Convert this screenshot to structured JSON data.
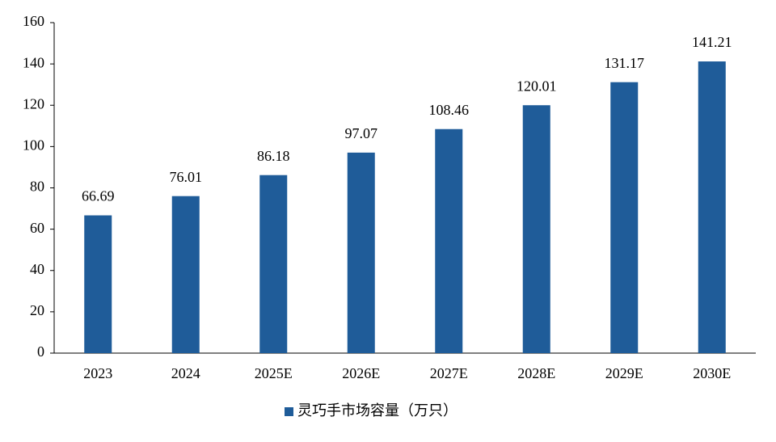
{
  "chart_data": {
    "type": "bar",
    "categories": [
      "2023",
      "2024",
      "2025E",
      "2026E",
      "2027E",
      "2028E",
      "2029E",
      "2030E"
    ],
    "series": [
      {
        "name": "灵巧手市场容量（万只）",
        "color": "#1f5c99",
        "values": [
          66.69,
          76.01,
          86.18,
          97.07,
          108.46,
          120.01,
          131.17,
          141.21
        ]
      }
    ],
    "ylim": [
      0,
      160
    ],
    "yticks": [
      0,
      20,
      40,
      60,
      80,
      100,
      120,
      140,
      160
    ],
    "grid": false,
    "legend": "bottom"
  }
}
